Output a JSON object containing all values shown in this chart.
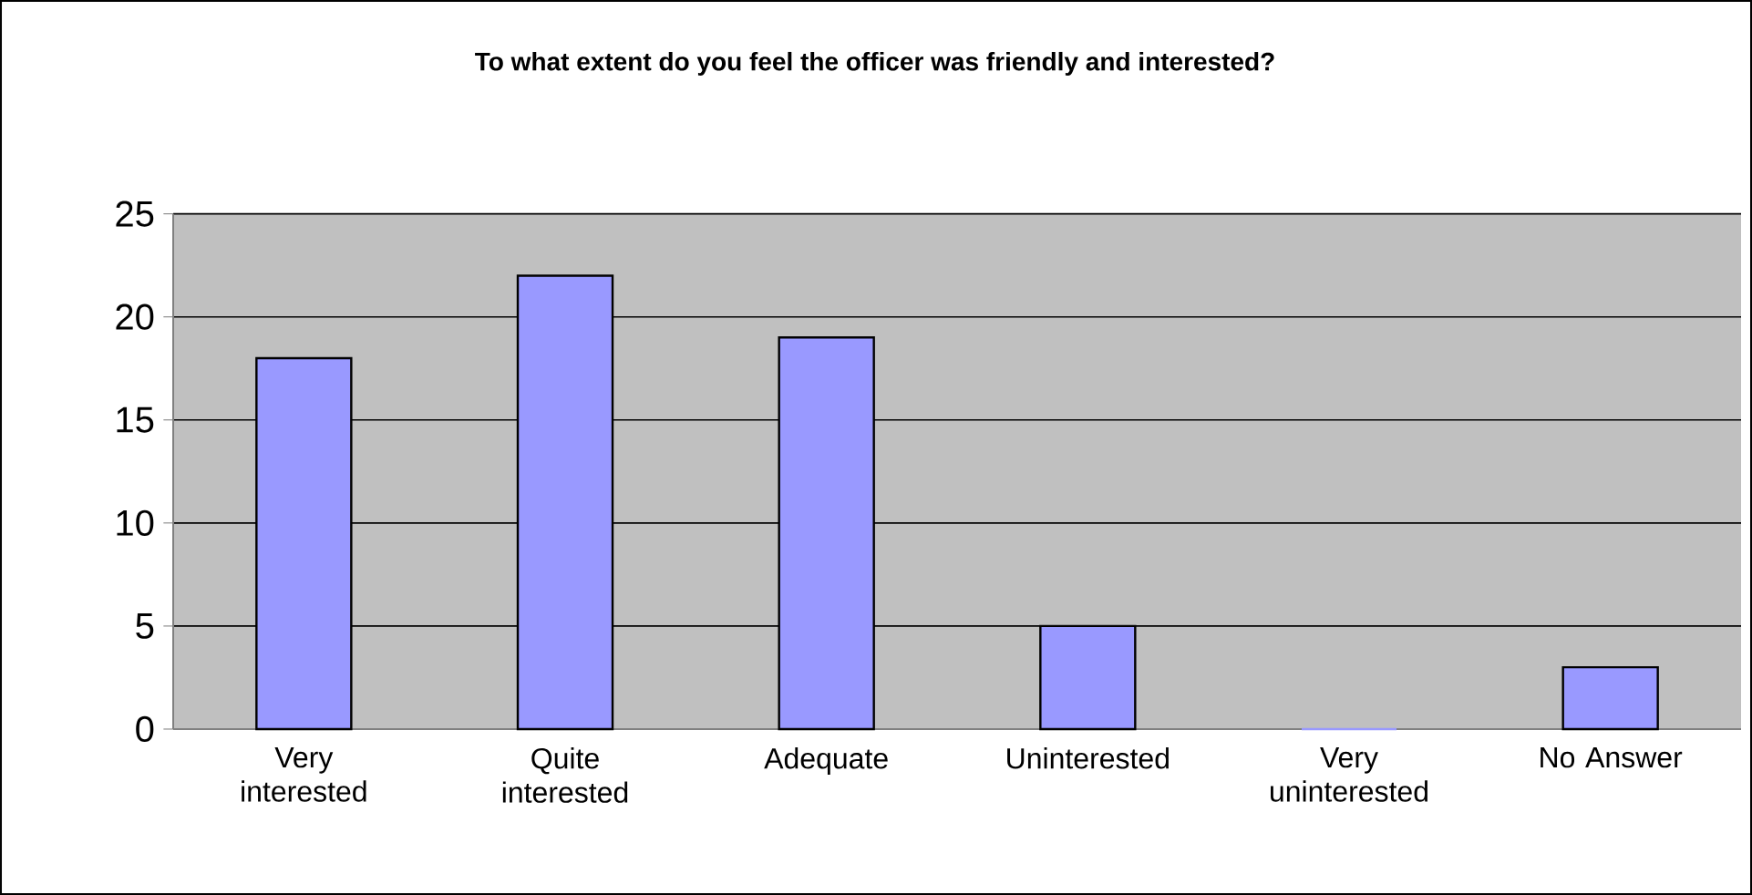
{
  "chart_data": {
    "type": "bar",
    "title": "To what extent do you feel the officer was friendly and interested?",
    "categories": [
      "Very interested",
      "Quite interested",
      "Adequate",
      "Uninterested",
      "Very uninterested",
      "No Answer"
    ],
    "values": [
      18,
      22,
      19,
      5,
      0,
      3
    ],
    "color": "#9999ff",
    "ylim": [
      0,
      25
    ],
    "yticks": [
      0,
      5,
      10,
      15,
      20,
      25
    ],
    "grid": "y"
  }
}
